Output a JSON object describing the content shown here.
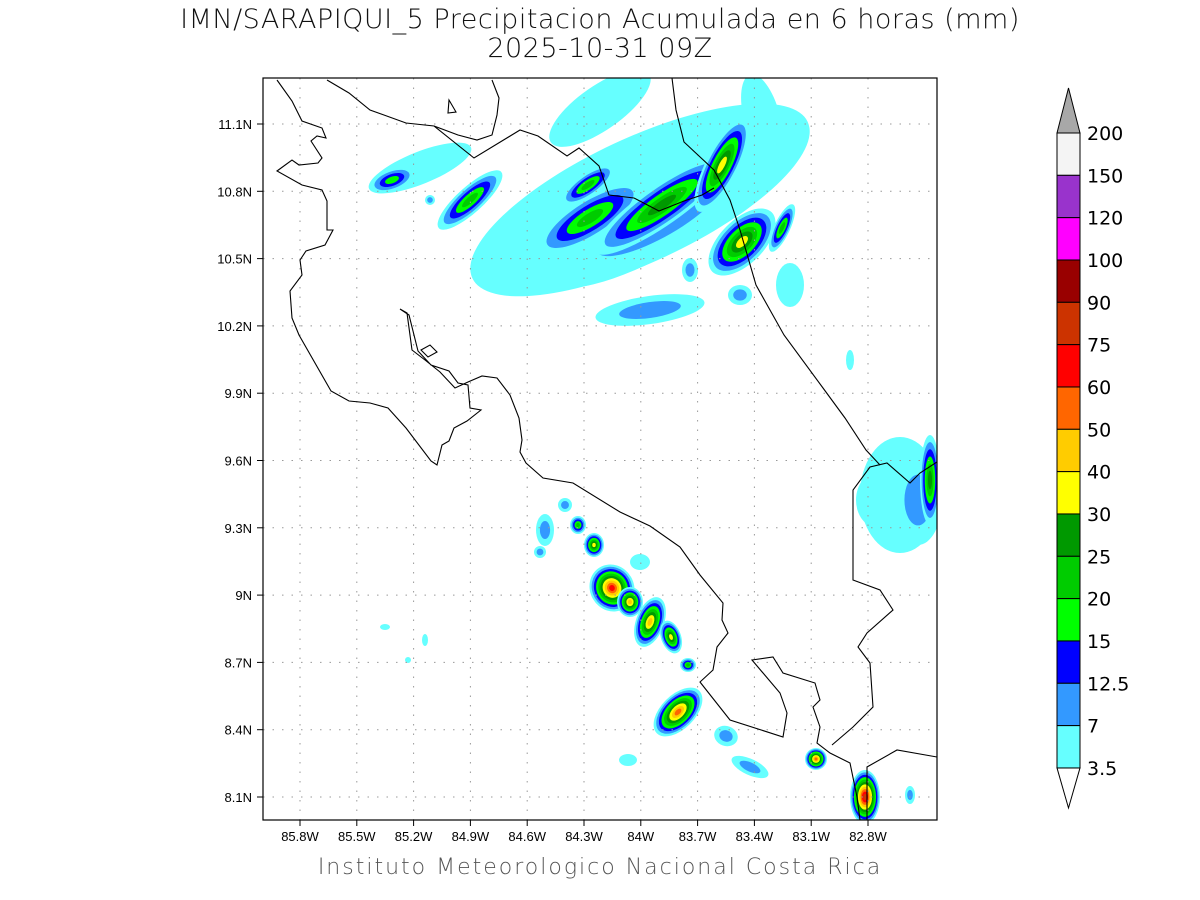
{
  "header": {
    "title": "IMN/SARAPIQUI_5 Precipitacion Acumulada en 6 horas (mm)",
    "subtitle": "2025-10-31 09Z"
  },
  "map": {
    "lon_labels": [
      "85.8W",
      "85.5W",
      "85.2W",
      "84.9W",
      "84.6W",
      "84.3W",
      "84W",
      "83.7W",
      "83.4W",
      "83.1W",
      "82.8W"
    ],
    "lat_labels": [
      "11.1N",
      "10.8N",
      "10.5N",
      "10.2N",
      "9.9N",
      "9.6N",
      "9.3N",
      "9N",
      "8.7N",
      "8.4N",
      "8.1N"
    ],
    "grid": "dotted",
    "region": "Costa Rica"
  },
  "colorbar": {
    "labels": [
      "200",
      "150",
      "120",
      "100",
      "90",
      "75",
      "60",
      "50",
      "40",
      "30",
      "25",
      "20",
      "15",
      "12.5",
      "7",
      "3.5"
    ],
    "colors": [
      "#f4f4f4",
      "#9933cc",
      "#ff00ff",
      "#990000",
      "#cc3300",
      "#ff0000",
      "#ff6600",
      "#ffcc00",
      "#ffff00",
      "#009900",
      "#00cc00",
      "#00ff00",
      "#0000ff",
      "#3399ff",
      "#66ffff"
    ],
    "over_color": "#a8a8a8",
    "under_color": "#ffffff"
  },
  "footer": "Instituto Meteorologico Nacional Costa Rica"
}
